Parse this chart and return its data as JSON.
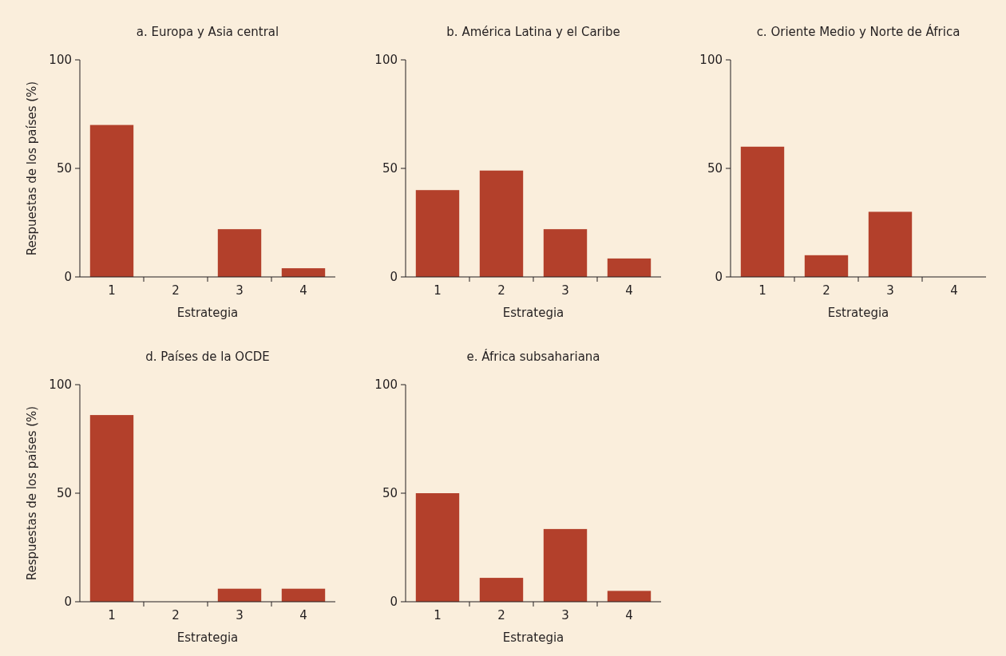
{
  "chart_data": [
    {
      "type": "bar",
      "title": "a. Europa y Asia central",
      "xlabel": "Estrategia",
      "ylabel": "Respuestas de los países (%)",
      "categories": [
        "1",
        "2",
        "3",
        "4"
      ],
      "values": [
        70,
        0,
        22,
        4
      ],
      "color": "#b3402b",
      "ylim": [
        0,
        100
      ],
      "yticks": [
        0,
        50,
        100
      ]
    },
    {
      "type": "bar",
      "title": "b. América Latina y el Caribe",
      "xlabel": "Estrategia",
      "categories": [
        "1",
        "2",
        "3",
        "4"
      ],
      "values": [
        40,
        49,
        22,
        8.5
      ],
      "color": "#b3402b",
      "ylim": [
        0,
        100
      ],
      "yticks": [
        0,
        50,
        100
      ]
    },
    {
      "type": "bar",
      "title": "c. Oriente Medio y Norte de África",
      "xlabel": "Estrategia",
      "categories": [
        "1",
        "2",
        "3",
        "4"
      ],
      "values": [
        60,
        10,
        30,
        0
      ],
      "color": "#b3402b",
      "ylim": [
        0,
        100
      ],
      "yticks": [
        0,
        50,
        100
      ]
    },
    {
      "type": "bar",
      "title": "d. Países de la OCDE",
      "xlabel": "Estrategia",
      "ylabel": "Respuestas de los países (%)",
      "categories": [
        "1",
        "2",
        "3",
        "4"
      ],
      "values": [
        86,
        0,
        6,
        6
      ],
      "color": "#b3402b",
      "ylim": [
        0,
        100
      ],
      "yticks": [
        0,
        50,
        100
      ]
    },
    {
      "type": "bar",
      "title": "e. África subsahariana",
      "xlabel": "Estrategia",
      "categories": [
        "1",
        "2",
        "3",
        "4"
      ],
      "values": [
        50,
        11,
        33.5,
        5
      ],
      "color": "#b3402b",
      "ylim": [
        0,
        100
      ],
      "yticks": [
        0,
        50,
        100
      ]
    }
  ]
}
